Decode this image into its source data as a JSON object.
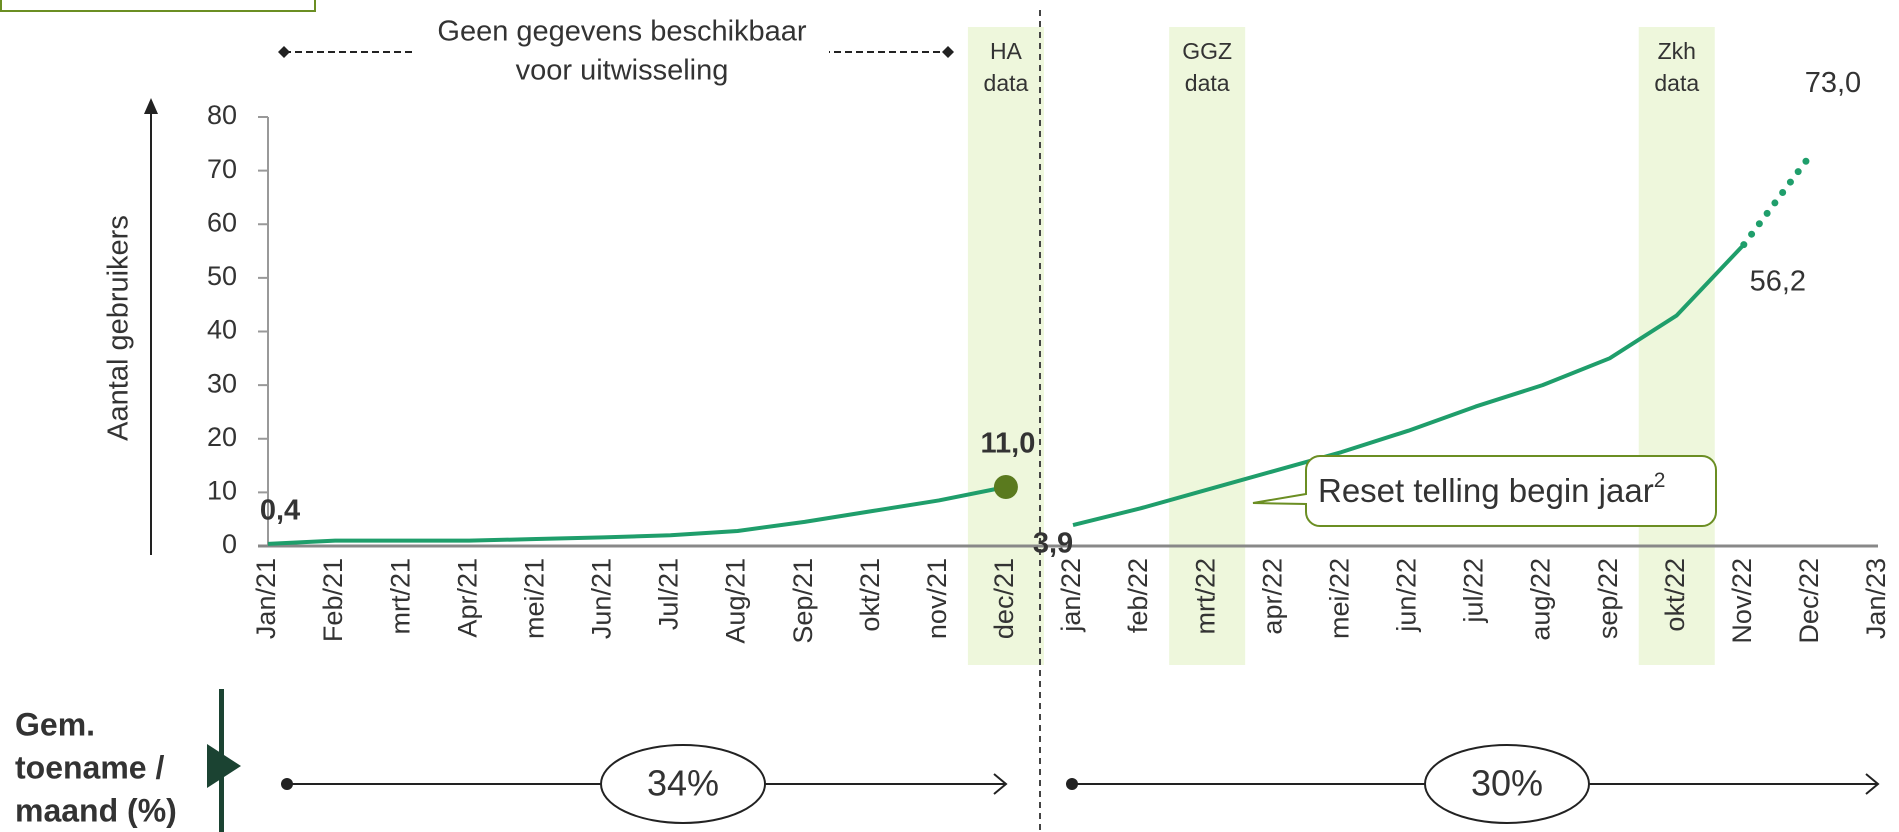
{
  "chart_data": {
    "type": "line",
    "y_axis_label": "Aantal gebruikers",
    "categories": [
      "Jan/21",
      "Feb/21",
      "mrt/21",
      "Apr/21",
      "mei/21",
      "Jun/21",
      "Jul/21",
      "Aug/21",
      "Sep/21",
      "okt/21",
      "nov/21",
      "dec/21",
      "jan/22",
      "feb/22",
      "mrt/22",
      "apr/22",
      "mei/22",
      "jun/22",
      "jul/22",
      "aug/22",
      "sep/22",
      "okt/22",
      "Nov/22",
      "Dec/22",
      "Jan/23"
    ],
    "series": [
      {
        "color": "#1f9e6b",
        "style": "solid",
        "values": [
          0.4,
          1,
          1,
          1,
          1.3,
          1.6,
          2,
          2.8,
          4.5,
          6.5,
          8.5,
          11.0,
          null,
          null,
          null,
          null,
          null,
          null,
          null,
          null,
          null,
          null,
          null,
          null,
          null
        ],
        "value_labels": [
          "0,4",
          null,
          null,
          null,
          null,
          null,
          null,
          null,
          null,
          null,
          null,
          "11,0",
          null,
          null,
          null,
          null,
          null,
          null,
          null,
          null,
          null,
          null,
          null,
          null,
          null
        ]
      },
      {
        "color": "#1f9e6b",
        "style": "solid",
        "values": [
          null,
          null,
          null,
          null,
          null,
          null,
          null,
          null,
          null,
          null,
          null,
          null,
          3.9,
          7,
          10.5,
          14,
          17.5,
          21.5,
          26,
          30,
          35,
          43,
          56.2,
          null,
          null
        ],
        "value_labels": [
          null,
          null,
          null,
          null,
          null,
          null,
          null,
          null,
          null,
          null,
          null,
          null,
          "3,9",
          null,
          null,
          null,
          null,
          null,
          null,
          null,
          null,
          null,
          "56,2",
          null,
          null
        ]
      },
      {
        "color": "#1f9e6b",
        "style": "dotted",
        "values": [
          null,
          null,
          null,
          null,
          null,
          null,
          null,
          null,
          null,
          null,
          null,
          null,
          null,
          null,
          null,
          null,
          null,
          null,
          null,
          null,
          null,
          null,
          56.2,
          73.0,
          null
        ],
        "value_labels": [
          null,
          null,
          null,
          null,
          null,
          null,
          null,
          null,
          null,
          null,
          null,
          null,
          null,
          null,
          null,
          null,
          null,
          null,
          null,
          null,
          null,
          null,
          null,
          "73,0",
          null
        ]
      }
    ],
    "ylim": [
      0,
      80
    ],
    "yticks": [
      0,
      10,
      20,
      30,
      40,
      50,
      60,
      70,
      80
    ],
    "highlights": [
      {
        "category": "dec/21",
        "lines": [
          "HA",
          "data"
        ]
      },
      {
        "category": "mrt/22",
        "lines": [
          "GGZ",
          "data"
        ]
      },
      {
        "category": "okt/22",
        "lines": [
          "Zkh",
          "data"
        ]
      }
    ],
    "no_data_note": [
      "Geen gegevens beschikbaar",
      "voor uitwisseling"
    ],
    "callout": {
      "text": "Reset telling begin jaar",
      "superscript": "2"
    },
    "growth_label": [
      "Gem.",
      "toename /",
      "maand (%)"
    ],
    "growth": [
      "34%",
      "30%"
    ]
  }
}
